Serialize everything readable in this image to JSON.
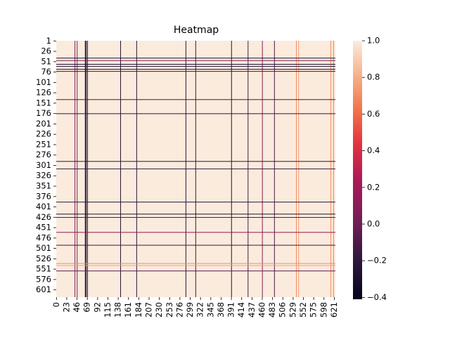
{
  "chart_data": {
    "type": "heatmap",
    "title": "Heatmap",
    "xlim": [
      0,
      624
    ],
    "ylim": [
      0,
      618
    ],
    "xticks": [
      0,
      23,
      46,
      69,
      92,
      115,
      138,
      161,
      184,
      207,
      230,
      253,
      276,
      299,
      322,
      345,
      368,
      391,
      414,
      437,
      460,
      483,
      506,
      529,
      552,
      575,
      598,
      621
    ],
    "yticks": [
      1,
      26,
      51,
      76,
      101,
      126,
      151,
      176,
      201,
      226,
      251,
      276,
      301,
      326,
      351,
      376,
      401,
      426,
      451,
      476,
      501,
      526,
      551,
      576,
      601
    ],
    "fill_value": 1.0,
    "columns": [
      {
        "index": 41,
        "value": 0.05
      },
      {
        "index": 46,
        "value": 0.1
      },
      {
        "index": 64,
        "value": -0.35
      },
      {
        "index": 66,
        "value": -0.3
      },
      {
        "index": 69,
        "value": -0.35
      },
      {
        "index": 143,
        "value": -0.25
      },
      {
        "index": 179,
        "value": -0.2
      },
      {
        "index": 289,
        "value": -0.2
      },
      {
        "index": 311,
        "value": -0.15
      },
      {
        "index": 391,
        "value": -0.25
      },
      {
        "index": 428,
        "value": -0.1
      },
      {
        "index": 460,
        "value": 0.1
      },
      {
        "index": 487,
        "value": -0.1
      },
      {
        "index": 536,
        "value": 0.7
      },
      {
        "index": 541,
        "value": 0.75
      },
      {
        "index": 613,
        "value": 0.7
      },
      {
        "index": 619,
        "value": 0.65
      }
    ],
    "rows": [
      {
        "index": 41,
        "value": -0.25
      },
      {
        "index": 47,
        "value": 0.05
      },
      {
        "index": 56,
        "value": -0.3
      },
      {
        "index": 61,
        "value": -0.2
      },
      {
        "index": 68,
        "value": -0.3
      },
      {
        "index": 73,
        "value": -0.15
      },
      {
        "index": 141,
        "value": -0.15
      },
      {
        "index": 175,
        "value": -0.2
      },
      {
        "index": 290,
        "value": -0.2
      },
      {
        "index": 308,
        "value": -0.15
      },
      {
        "index": 388,
        "value": -0.2
      },
      {
        "index": 417,
        "value": -0.25
      },
      {
        "index": 425,
        "value": -0.1
      },
      {
        "index": 461,
        "value": 0.15
      },
      {
        "index": 492,
        "value": -0.15
      },
      {
        "index": 536,
        "value": 0.7
      },
      {
        "index": 541,
        "value": 0.75
      },
      {
        "index": 554,
        "value": -0.05
      }
    ],
    "clim": [
      -0.41,
      1.0
    ],
    "cticks": [
      {
        "value": -0.4,
        "label": "−0.4"
      },
      {
        "value": -0.2,
        "label": "−0.2"
      },
      {
        "value": 0,
        "label": "0.0"
      },
      0.2,
      0.4,
      0.6,
      0.8,
      {
        "value": 1,
        "label": "1.0"
      }
    ]
  }
}
